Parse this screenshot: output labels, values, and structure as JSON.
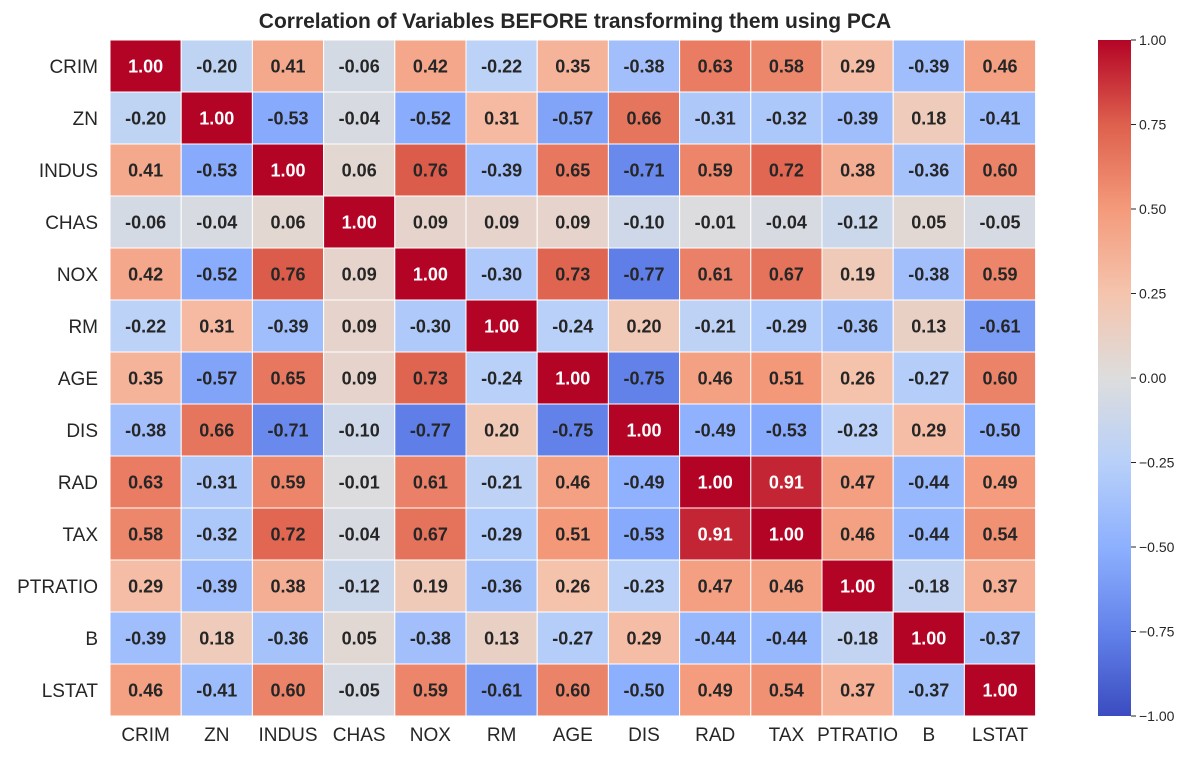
{
  "chart_data": {
    "type": "heatmap",
    "title": "Correlation of Variables BEFORE transforming them using PCA",
    "x_labels": [
      "CRIM",
      "ZN",
      "INDUS",
      "CHAS",
      "NOX",
      "RM",
      "AGE",
      "DIS",
      "RAD",
      "TAX",
      "PTRATIO",
      "B",
      "LSTAT"
    ],
    "y_labels": [
      "CRIM",
      "ZN",
      "INDUS",
      "CHAS",
      "NOX",
      "RM",
      "AGE",
      "DIS",
      "RAD",
      "TAX",
      "PTRATIO",
      "B",
      "LSTAT"
    ],
    "values": [
      [
        1.0,
        -0.2,
        0.41,
        -0.06,
        0.42,
        -0.22,
        0.35,
        -0.38,
        0.63,
        0.58,
        0.29,
        -0.39,
        0.46
      ],
      [
        -0.2,
        1.0,
        -0.53,
        -0.04,
        -0.52,
        0.31,
        -0.57,
        0.66,
        -0.31,
        -0.32,
        -0.39,
        0.18,
        -0.41
      ],
      [
        0.41,
        -0.53,
        1.0,
        0.06,
        0.76,
        -0.39,
        0.65,
        -0.71,
        0.59,
        0.72,
        0.38,
        -0.36,
        0.6
      ],
      [
        -0.06,
        -0.04,
        0.06,
        1.0,
        0.09,
        0.09,
        0.09,
        -0.1,
        -0.01,
        -0.04,
        -0.12,
        0.05,
        -0.05
      ],
      [
        0.42,
        -0.52,
        0.76,
        0.09,
        1.0,
        -0.3,
        0.73,
        -0.77,
        0.61,
        0.67,
        0.19,
        -0.38,
        0.59
      ],
      [
        -0.22,
        0.31,
        -0.39,
        0.09,
        -0.3,
        1.0,
        -0.24,
        0.2,
        -0.21,
        -0.29,
        -0.36,
        0.13,
        -0.61
      ],
      [
        0.35,
        -0.57,
        0.65,
        0.09,
        0.73,
        -0.24,
        1.0,
        -0.75,
        0.46,
        0.51,
        0.26,
        -0.27,
        0.6
      ],
      [
        -0.38,
        0.66,
        -0.71,
        -0.1,
        -0.77,
        0.2,
        -0.75,
        1.0,
        -0.49,
        -0.53,
        -0.23,
        0.29,
        -0.5
      ],
      [
        0.63,
        -0.31,
        0.59,
        -0.01,
        0.61,
        -0.21,
        0.46,
        -0.49,
        1.0,
        0.91,
        0.47,
        -0.44,
        0.49
      ],
      [
        0.58,
        -0.32,
        0.72,
        -0.04,
        0.67,
        -0.29,
        0.51,
        -0.53,
        0.91,
        1.0,
        0.46,
        -0.44,
        0.54
      ],
      [
        0.29,
        -0.39,
        0.38,
        -0.12,
        0.19,
        -0.36,
        0.26,
        -0.23,
        0.47,
        0.46,
        1.0,
        -0.18,
        0.37
      ],
      [
        -0.39,
        0.18,
        -0.36,
        0.05,
        -0.38,
        0.13,
        -0.27,
        0.29,
        -0.44,
        -0.44,
        -0.18,
        1.0,
        -0.37
      ],
      [
        0.46,
        -0.41,
        0.6,
        -0.05,
        0.59,
        -0.61,
        0.6,
        -0.5,
        0.49,
        0.54,
        0.37,
        -0.37,
        1.0
      ]
    ],
    "value_format": "2 decimals",
    "colormap": "coolwarm",
    "color_range": [
      -1.0,
      1.0
    ],
    "colorbar_ticks": [
      "1.00",
      "0.75",
      "0.50",
      "0.25",
      "0.00",
      "−0.25",
      "−0.50",
      "−0.75",
      "−1.00"
    ],
    "colorbar_tick_values": [
      1.0,
      0.75,
      0.5,
      0.25,
      0.0,
      -0.25,
      -0.5,
      -0.75,
      -1.0
    ],
    "grid_line_color": "#ffffff",
    "legend_placement": "right (colorbar)"
  }
}
